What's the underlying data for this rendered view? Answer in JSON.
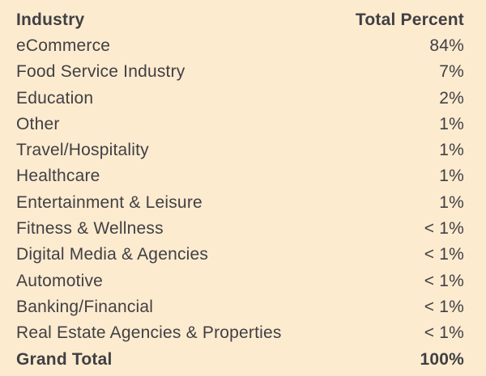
{
  "table": {
    "header": {
      "industry": "Industry",
      "percent": "Total Percent"
    },
    "rows": [
      {
        "industry": "eCommerce",
        "percent": "84%"
      },
      {
        "industry": "Food Service Industry",
        "percent": "7%"
      },
      {
        "industry": "Education",
        "percent": "2%"
      },
      {
        "industry": "Other",
        "percent": "1%"
      },
      {
        "industry": "Travel/Hospitality",
        "percent": "1%"
      },
      {
        "industry": "Healthcare",
        "percent": "1%"
      },
      {
        "industry": "Entertainment & Leisure",
        "percent": "1%"
      },
      {
        "industry": "Fitness & Wellness",
        "percent": "< 1%"
      },
      {
        "industry": "Digital Media & Agencies",
        "percent": "< 1%"
      },
      {
        "industry": "Automotive",
        "percent": "< 1%"
      },
      {
        "industry": "Banking/Financial",
        "percent": "< 1%"
      },
      {
        "industry": "Real Estate Agencies & Properties",
        "percent": "< 1%"
      }
    ],
    "total": {
      "industry": "Grand Total",
      "percent": "100%"
    }
  },
  "colors": {
    "background": "#fdebd0",
    "text": "#404043"
  }
}
